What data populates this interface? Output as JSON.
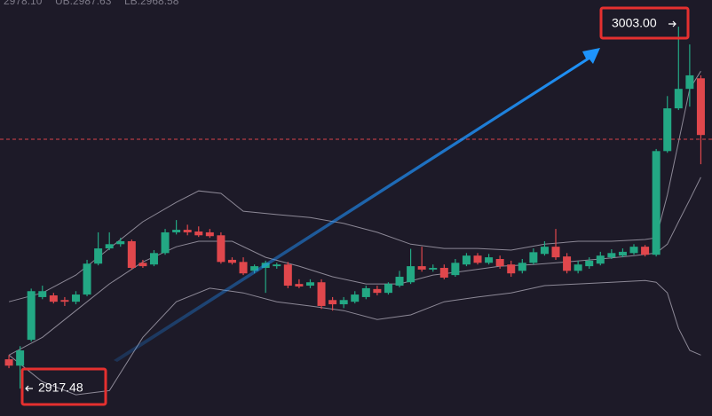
{
  "chart_data": {
    "type": "candlestick",
    "header": [
      "2978.10",
      "UB:2987.63",
      "LB:2968.58"
    ],
    "high_label": "3003.00",
    "low_label": "2917.48",
    "up_color": "#23a884",
    "down_color": "#e0474c",
    "band_color": "#8c8896",
    "ref_color": "#d9434a",
    "xlim": [
      -0.8,
      63
    ],
    "ylim": [
      2911,
      3009.3
    ],
    "ref_line": 2976.4,
    "candles": {
      "open": [
        2924.4,
        2922.9,
        2929.0,
        2939.1,
        2939.5,
        2938.4,
        2938.0,
        2939.7,
        2947.0,
        2950.6,
        2951.6,
        2952.3,
        2947.2,
        2946.8,
        2949.5,
        2954.4,
        2955.0,
        2954.6,
        2954.4,
        2953.7,
        2947.9,
        2947.4,
        2945.3,
        2946.0,
        2946.4,
        2946.8,
        2942.2,
        2941.8,
        2942.6,
        2938.4,
        2937.4,
        2938.0,
        2939.1,
        2941.0,
        2940.1,
        2941.8,
        2942.6,
        2946.4,
        2945.6,
        2946.0,
        2944.3,
        2946.8,
        2948.9,
        2947.2,
        2948.1,
        2946.8,
        2945.3,
        2947.2,
        2949.3,
        2951.0,
        2948.7,
        2945.3,
        2946.4,
        2947.0,
        2948.5,
        2948.9,
        2949.5,
        2951.0,
        2949.1,
        2973.6,
        2983.7,
        2988.3,
        2990.8
      ],
      "high": [
        2925.4,
        2927.5,
        2941.1,
        2941.8,
        2940.1,
        2939.1,
        2940.5,
        2947.9,
        2954.4,
        2954.4,
        2953.1,
        2952.7,
        2947.9,
        2950.2,
        2955.2,
        2957.3,
        2956.2,
        2955.8,
        2955.2,
        2954.4,
        2948.5,
        2948.5,
        2946.8,
        2947.7,
        2947.2,
        2947.4,
        2943.3,
        2943.3,
        2943.3,
        2939.1,
        2939.1,
        2940.5,
        2941.8,
        2941.8,
        2942.6,
        2945.3,
        2950.5,
        2951.0,
        2946.8,
        2946.8,
        2948.1,
        2949.5,
        2949.5,
        2949.3,
        2948.9,
        2947.7,
        2948.1,
        2950.6,
        2952.3,
        2955.2,
        2949.5,
        2947.7,
        2948.5,
        2949.8,
        2950.4,
        2950.6,
        2951.6,
        2951.4,
        2974.1,
        2986.6,
        3003.0,
        2998.8,
        2991.5
      ],
      "low": [
        2922.3,
        2917.48,
        2928.6,
        2938.6,
        2937.6,
        2937.0,
        2937.4,
        2939.3,
        2946.6,
        2950.2,
        2951.0,
        2945.6,
        2946.0,
        2946.4,
        2949.1,
        2953.9,
        2953.7,
        2953.3,
        2953.1,
        2947.0,
        2946.8,
        2944.3,
        2944.7,
        2940.1,
        2945.8,
        2941.2,
        2941.2,
        2941.2,
        2936.3,
        2935.9,
        2936.5,
        2937.6,
        2938.6,
        2939.5,
        2939.7,
        2941.4,
        2942.2,
        2945.1,
        2945.1,
        2943.3,
        2943.9,
        2946.4,
        2946.8,
        2946.8,
        2945.8,
        2943.9,
        2944.7,
        2946.8,
        2948.9,
        2947.9,
        2944.7,
        2944.7,
        2945.8,
        2946.6,
        2948.1,
        2948.5,
        2949.1,
        2948.7,
        2948.7,
        2973.2,
        2983.3,
        2984.1,
        2970.5
      ],
      "close": [
        2922.9,
        2926.5,
        2940.5,
        2940.5,
        2938.0,
        2938.0,
        2939.7,
        2947.0,
        2950.6,
        2951.6,
        2952.3,
        2946.0,
        2946.4,
        2949.5,
        2954.4,
        2955.0,
        2954.4,
        2953.7,
        2953.5,
        2947.4,
        2947.2,
        2944.7,
        2946.4,
        2947.2,
        2946.8,
        2941.8,
        2941.6,
        2942.6,
        2937.0,
        2937.4,
        2938.4,
        2939.7,
        2941.2,
        2940.1,
        2942.2,
        2943.9,
        2946.4,
        2945.6,
        2946.0,
        2943.7,
        2947.2,
        2948.9,
        2947.2,
        2948.5,
        2946.4,
        2944.7,
        2947.2,
        2949.7,
        2951.0,
        2948.5,
        2945.3,
        2946.8,
        2947.7,
        2948.9,
        2949.5,
        2949.8,
        2951.0,
        2949.1,
        2973.6,
        2983.7,
        2988.3,
        2991.5,
        2977.4
      ]
    },
    "bands": [
      {
        "x": [
          0,
          3,
          6,
          9,
          12,
          15,
          17,
          19,
          21,
          24,
          27,
          30,
          33,
          36,
          39,
          42,
          45,
          48,
          51,
          54,
          57,
          58,
          59,
          60,
          61,
          62
        ],
        "values": [
          2938.0,
          2940.1,
          2944.3,
          2950.6,
          2956.9,
          2961.5,
          2964.2,
          2963.6,
          2959.4,
          2958.6,
          2957.9,
          2956.5,
          2954.4,
          2951.6,
          2950.6,
          2950.6,
          2950.2,
          2951.6,
          2952.3,
          2952.3,
          2952.7,
          2953.1,
          2963.2,
          2975.7,
          2988.3,
          2992.5
        ]
      },
      {
        "x": [
          0,
          3,
          6,
          9,
          12,
          15,
          17,
          20,
          23,
          26,
          29,
          32,
          35,
          38,
          41,
          44,
          47,
          50,
          53,
          56,
          58,
          59,
          60,
          61,
          62
        ],
        "values": [
          2925.4,
          2929.6,
          2935.9,
          2942.2,
          2947.4,
          2951.0,
          2952.3,
          2952.3,
          2948.5,
          2946.4,
          2943.9,
          2942.2,
          2942.2,
          2944.3,
          2945.3,
          2946.4,
          2946.8,
          2947.4,
          2948.1,
          2948.9,
          2949.5,
          2951.6,
          2956.9,
          2962.1,
          2967.4
        ]
      },
      {
        "x": [
          0,
          3,
          6,
          9,
          12,
          15,
          18,
          21,
          24,
          27,
          30,
          33,
          36,
          39,
          42,
          45,
          48,
          51,
          54,
          57,
          58,
          59,
          60,
          61,
          62
        ],
        "values": [
          2925.4,
          2919.1,
          2916.0,
          2917.0,
          2929.6,
          2938.0,
          2941.2,
          2940.1,
          2938.0,
          2937.0,
          2935.9,
          2933.8,
          2934.9,
          2938.0,
          2939.1,
          2940.1,
          2941.8,
          2942.2,
          2942.6,
          2943.0,
          2942.6,
          2940.1,
          2931.7,
          2926.5,
          2925.4
        ]
      }
    ]
  }
}
